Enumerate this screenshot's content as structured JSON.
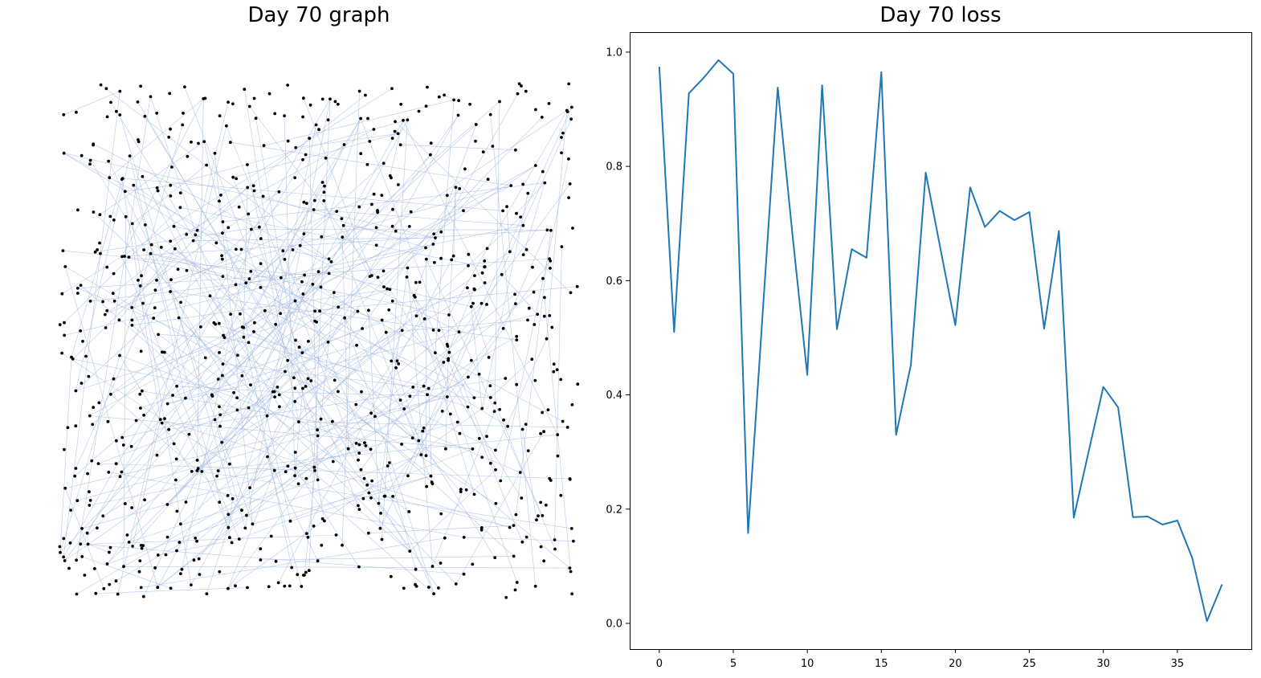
{
  "chart_data": [
    {
      "type": "graph",
      "title": "Day 70 graph",
      "axes_visible": false,
      "node_count": 800,
      "edge_count": 300,
      "node_color": "#000000",
      "edge_color": "#9fb7df",
      "random_seed": 70
    },
    {
      "type": "line",
      "title": "Day 70 loss",
      "xlabel": "",
      "ylabel": "",
      "x": [
        0,
        1,
        2,
        3,
        4,
        5,
        6,
        7,
        8,
        9,
        10,
        11,
        12,
        13,
        14,
        15,
        16,
        17,
        18,
        19,
        20,
        21,
        22,
        23,
        24,
        25,
        26,
        27,
        28,
        29,
        30,
        31,
        32,
        33,
        34,
        35,
        36,
        37,
        38
      ],
      "series": [
        {
          "values": [
            0.973,
            0.51,
            0.928,
            0.955,
            0.986,
            0.962,
            0.158,
            0.55,
            0.938,
            0.68,
            0.435,
            0.942,
            0.515,
            0.655,
            0.64,
            0.965,
            0.33,
            0.453,
            0.789,
            0.655,
            0.522,
            0.763,
            0.694,
            0.722,
            0.706,
            0.72,
            0.516,
            0.687,
            0.185,
            0.3,
            0.414,
            0.378,
            0.186,
            0.187,
            0.173,
            0.18,
            0.115,
            0.004,
            0.067
          ],
          "color": "#1f77b4"
        }
      ],
      "xlim": [
        -2,
        40
      ],
      "ylim": [
        -0.045,
        1.035
      ],
      "xticks": [
        0,
        5,
        10,
        15,
        20,
        25,
        30,
        35
      ],
      "yticks": [
        0.0,
        0.2,
        0.4,
        0.6,
        0.8,
        1.0
      ],
      "ytick_labels": [
        "0.0",
        "0.2",
        "0.4",
        "0.6",
        "0.8",
        "1.0"
      ],
      "grid": false
    }
  ]
}
